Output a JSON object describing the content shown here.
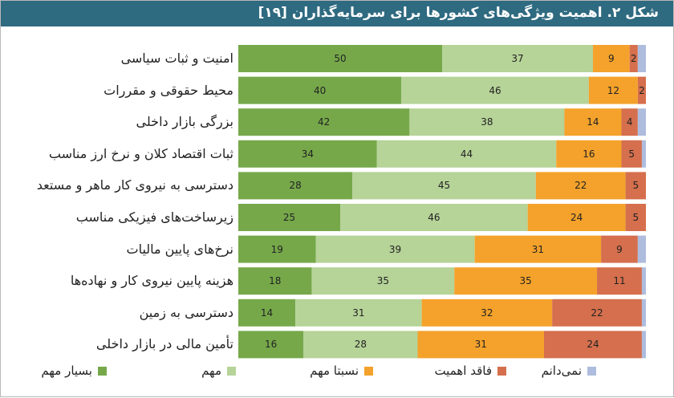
{
  "title": "شکل ۲. اهمیت ویژگی‌های کشورها برای سرمایه‌گذاران [۱۹]",
  "chart_data": {
    "type": "bar",
    "orientation": "horizontal",
    "stacked": true,
    "percent_scale": [
      0,
      100
    ],
    "categories": [
      "امنیت و ثبات سیاسی",
      "محیط حقوقی و مقررات",
      "بزرگی بازار داخلی",
      "ثبات اقتصاد کلان و نرخ ارز مناسب",
      "دسترسی به نیروی کار ماهر و مستعد",
      "زیرساخت‌های فیزیکی مناسب",
      "نرخ‌های پایین مالیات",
      "هزینه پایین نیروی کار و نهاده‌ها",
      "دسترسی به زمین",
      "تأمین مالی در بازار داخلی"
    ],
    "series": [
      {
        "name": "بسیار مهم",
        "color": "#76a84a",
        "values": [
          50,
          40,
          42,
          34,
          28,
          25,
          19,
          18,
          14,
          16
        ]
      },
      {
        "name": "مهم",
        "color": "#b6d398",
        "values": [
          37,
          46,
          38,
          44,
          45,
          46,
          39,
          35,
          31,
          28
        ]
      },
      {
        "name": "نسبتا مهم",
        "color": "#f4a22b",
        "values": [
          9,
          12,
          14,
          16,
          22,
          24,
          31,
          35,
          32,
          31
        ]
      },
      {
        "name": "فاقد اهمیت",
        "color": "#d56f4d",
        "values": [
          2,
          2,
          4,
          5,
          5,
          5,
          9,
          11,
          22,
          24
        ]
      },
      {
        "name": "نمی‌دانم",
        "color": "#aebcdd",
        "values": [
          2,
          0,
          2,
          1,
          0,
          0,
          2,
          1,
          1,
          1
        ]
      }
    ],
    "data_labels": [
      [
        "50",
        "37",
        "9",
        "2",
        ""
      ],
      [
        "40",
        "46",
        "12",
        "2",
        ""
      ],
      [
        "42",
        "38",
        "14",
        "4",
        ""
      ],
      [
        "34",
        "44",
        "16",
        "5",
        ""
      ],
      [
        "28",
        "45",
        "22",
        "5",
        ""
      ],
      [
        "25",
        "46",
        "24",
        "5",
        ""
      ],
      [
        "19",
        "39",
        "31",
        "9",
        ""
      ],
      [
        "18",
        "35",
        "35",
        "11",
        ""
      ],
      [
        "14",
        "31",
        "32",
        "22",
        ""
      ],
      [
        "16",
        "28",
        "31",
        "24",
        ""
      ]
    ],
    "legend_position": "bottom",
    "grid": false
  }
}
